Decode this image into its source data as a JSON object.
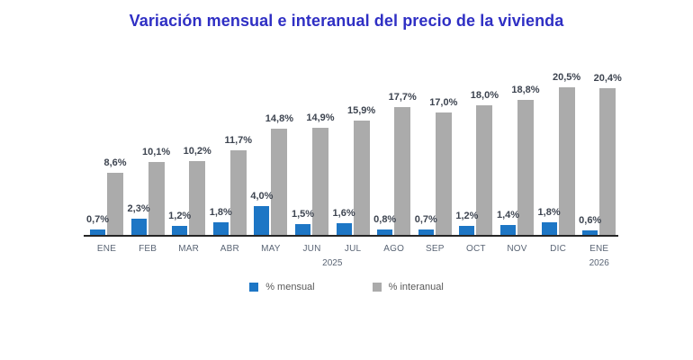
{
  "title": "Variación mensual e interanual del precio de la vivienda",
  "colors": {
    "title": "#2f2fc4",
    "mensual": "#1d76c5",
    "interanual": "#ababab",
    "value_label": "#3d4450",
    "axis_text": "#5a6575",
    "axis_line": "#262626"
  },
  "legend": [
    {
      "label": "% mensual",
      "color": "#1d76c5"
    },
    {
      "label": "% interanual",
      "color": "#ababab"
    }
  ],
  "chart_data": {
    "type": "bar",
    "title": "Variación mensual e interanual del precio de la vivienda",
    "categories": [
      "ENE",
      "FEB",
      "MAR",
      "ABR",
      "MAY",
      "JUN",
      "JUL",
      "AGO",
      "SEP",
      "OCT",
      "NOV",
      "DIC",
      "ENE"
    ],
    "year_labels": [
      {
        "text": "2025",
        "index": 5.5
      },
      {
        "text": "2026",
        "index": 12
      }
    ],
    "series": [
      {
        "name": "% mensual",
        "color": "#1d76c5",
        "values": [
          0.7,
          2.3,
          1.2,
          1.8,
          4.0,
          1.5,
          1.6,
          0.8,
          0.7,
          1.2,
          1.4,
          1.8,
          0.6
        ],
        "labels": [
          "0,7%",
          "2,3%",
          "1,2%",
          "1,8%",
          "4,0%",
          "1,5%",
          "1,6%",
          "0,8%",
          "0,7%",
          "1,2%",
          "1,4%",
          "1,8%",
          "0,6%"
        ]
      },
      {
        "name": "% interanual",
        "color": "#ababab",
        "values": [
          8.6,
          10.1,
          10.2,
          11.7,
          14.8,
          14.9,
          15.9,
          17.7,
          17.0,
          18.0,
          18.8,
          20.5,
          20.4
        ],
        "labels": [
          "8,6%",
          "10,1%",
          "10,2%",
          "11,7%",
          "14,8%",
          "14,9%",
          "15,9%",
          "17,7%",
          "17,0%",
          "18,0%",
          "18,8%",
          "20,5%",
          "20,4%"
        ]
      }
    ],
    "ylim": [
      0,
      22
    ],
    "grid": false,
    "axis_labels_visible": false,
    "legend_position": "bottom",
    "data_labels": true
  }
}
